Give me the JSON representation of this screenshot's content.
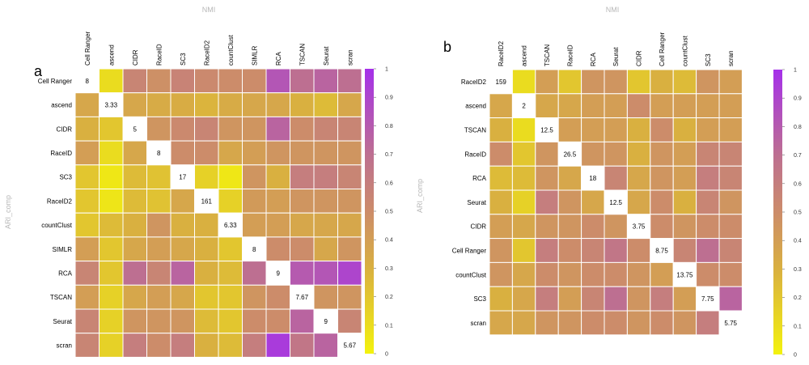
{
  "chart_data": [
    {
      "type": "heatmap",
      "panel_label": "a",
      "xlabel": "NMI",
      "ylabel": "ARI_comp",
      "labels": [
        "Cell Ranger",
        "ascend",
        "CIDR",
        "RaceID",
        "SC3",
        "RaceID2",
        "countClust",
        "SIMLR",
        "RCA",
        "TSCAN",
        "Seurat",
        "scran"
      ],
      "diagonal": [
        "8",
        "3.33",
        "5",
        "8",
        "17",
        "161",
        "6.33",
        "8",
        "9",
        "7.67",
        "9",
        "5.67"
      ],
      "values": [
        [
          null,
          0.1,
          0.55,
          0.48,
          0.56,
          0.52,
          0.5,
          0.5,
          0.82,
          0.7,
          0.75,
          0.7
        ],
        [
          0.35,
          null,
          0.35,
          0.33,
          0.32,
          0.28,
          0.33,
          0.35,
          0.35,
          0.3,
          0.25,
          0.35
        ],
        [
          0.3,
          0.2,
          null,
          0.45,
          0.52,
          0.55,
          0.45,
          0.45,
          0.75,
          0.5,
          0.55,
          0.55
        ],
        [
          0.4,
          0.1,
          0.35,
          null,
          0.5,
          0.5,
          0.35,
          0.4,
          0.45,
          0.45,
          0.45,
          0.45
        ],
        [
          0.2,
          0.05,
          0.25,
          0.22,
          null,
          0.15,
          0.05,
          0.45,
          0.3,
          0.6,
          0.6,
          0.55
        ],
        [
          0.2,
          0.06,
          0.25,
          0.22,
          0.35,
          null,
          0.15,
          0.42,
          0.4,
          0.45,
          0.45,
          0.45
        ],
        [
          0.2,
          0.25,
          0.3,
          0.45,
          0.3,
          0.3,
          null,
          0.4,
          0.4,
          0.35,
          0.35,
          0.35
        ],
        [
          0.4,
          0.2,
          0.35,
          0.4,
          0.35,
          0.3,
          0.2,
          null,
          0.5,
          0.5,
          0.35,
          0.45
        ],
        [
          0.55,
          0.2,
          0.7,
          0.55,
          0.75,
          0.3,
          0.25,
          0.7,
          null,
          0.8,
          0.82,
          0.9
        ],
        [
          0.4,
          0.15,
          0.35,
          0.4,
          0.35,
          0.2,
          0.2,
          0.45,
          0.5,
          null,
          0.45,
          0.45
        ],
        [
          0.55,
          0.15,
          0.45,
          0.45,
          0.45,
          0.25,
          0.2,
          0.5,
          0.5,
          0.75,
          null,
          0.55
        ],
        [
          0.55,
          0.15,
          0.6,
          0.5,
          0.6,
          0.3,
          0.25,
          0.6,
          0.95,
          0.65,
          0.75,
          null
        ]
      ],
      "colorbar": {
        "min": 0,
        "max": 1,
        "ticks": [
          "0",
          "0.1",
          "0.2",
          "0.3",
          "0.4",
          "0.5",
          "0.6",
          "0.7",
          "0.8",
          "0.9",
          "1"
        ]
      }
    },
    {
      "type": "heatmap",
      "panel_label": "b",
      "xlabel": "NMI",
      "ylabel": "ARI_comp",
      "labels": [
        "RaceID2",
        "ascend",
        "TSCAN",
        "RaceID",
        "RCA",
        "Seurat",
        "CIDR",
        "Cell Ranger",
        "countClust",
        "SC3",
        "scran"
      ],
      "diagonal": [
        "159",
        "2",
        "12.5",
        "26.5",
        "18",
        "12.5",
        "3.75",
        "8.75",
        "13.75",
        "7.75",
        "5.75"
      ],
      "values": [
        [
          null,
          0.1,
          0.4,
          0.2,
          0.45,
          0.45,
          0.2,
          0.3,
          0.25,
          0.45,
          0.4
        ],
        [
          0.35,
          null,
          0.35,
          0.35,
          0.4,
          0.4,
          0.5,
          0.4,
          0.4,
          0.4,
          0.4
        ],
        [
          0.3,
          0.1,
          null,
          0.4,
          0.4,
          0.4,
          0.3,
          0.5,
          0.3,
          0.4,
          0.4
        ],
        [
          0.5,
          0.2,
          0.45,
          null,
          0.45,
          0.45,
          0.3,
          0.45,
          0.4,
          0.55,
          0.55
        ],
        [
          0.25,
          0.25,
          0.45,
          0.35,
          null,
          0.55,
          0.35,
          0.45,
          0.4,
          0.6,
          0.55
        ],
        [
          0.3,
          0.15,
          0.6,
          0.45,
          0.35,
          null,
          0.35,
          0.5,
          0.3,
          0.55,
          0.45
        ],
        [
          0.4,
          0.35,
          0.45,
          0.45,
          0.5,
          0.45,
          null,
          0.5,
          0.45,
          0.5,
          0.5
        ],
        [
          0.45,
          0.2,
          0.6,
          0.5,
          0.55,
          0.65,
          0.5,
          null,
          0.55,
          0.7,
          0.55
        ],
        [
          0.45,
          0.35,
          0.5,
          0.45,
          0.5,
          0.5,
          0.45,
          0.4,
          null,
          0.5,
          0.5
        ],
        [
          0.3,
          0.35,
          0.6,
          0.4,
          0.55,
          0.7,
          0.45,
          0.6,
          0.4,
          null,
          0.75
        ],
        [
          0.35,
          0.35,
          0.45,
          0.45,
          0.5,
          0.5,
          0.45,
          0.5,
          0.45,
          0.6,
          null
        ]
      ],
      "colorbar": {
        "min": 0,
        "max": 1,
        "ticks": [
          "0",
          "0.1",
          "0.2",
          "0.3",
          "0.4",
          "0.5",
          "0.6",
          "0.7",
          "0.8",
          "0.9",
          "1"
        ]
      }
    }
  ]
}
